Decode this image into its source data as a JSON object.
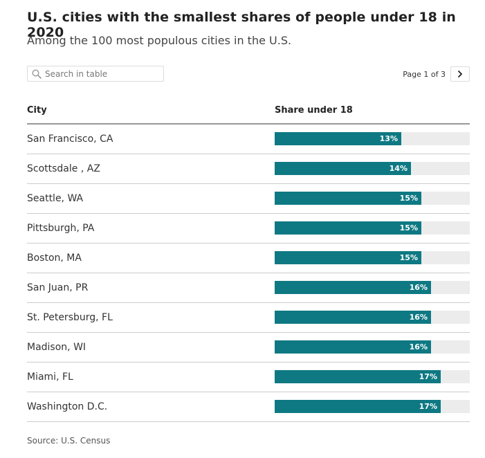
{
  "header": {
    "title": "U.S. cities with the smallest shares of people under 18 in 2020",
    "subtitle": "Among the 100 most populous cities in the U.S."
  },
  "search": {
    "placeholder": "Search in table",
    "icon": "search-icon"
  },
  "pagination": {
    "label": "Page 1 of 3",
    "next_icon": "chevron-right-icon"
  },
  "table": {
    "columns": [
      "City",
      "Share under 18"
    ]
  },
  "colors": {
    "bar": "#0e7983",
    "track": "#ececec"
  },
  "chart_data": {
    "type": "table",
    "columns": [
      "City",
      "Share under 18"
    ],
    "xlim": [
      0,
      20
    ],
    "rows": [
      {
        "city": "San Francisco, CA",
        "value": 13,
        "label": "13%"
      },
      {
        "city": "Scottsdale , AZ",
        "value": 14,
        "label": "14%"
      },
      {
        "city": "Seattle, WA",
        "value": 15,
        "label": "15%"
      },
      {
        "city": "Pittsburgh, PA",
        "value": 15,
        "label": "15%"
      },
      {
        "city": "Boston, MA",
        "value": 15,
        "label": "15%"
      },
      {
        "city": "San Juan, PR",
        "value": 16,
        "label": "16%"
      },
      {
        "city": "St. Petersburg, FL",
        "value": 16,
        "label": "16%"
      },
      {
        "city": "Madison, WI",
        "value": 16,
        "label": "16%"
      },
      {
        "city": "Miami, FL",
        "value": 17,
        "label": "17%"
      },
      {
        "city": "Washington D.C.",
        "value": 17,
        "label": "17%"
      }
    ]
  },
  "footer": {
    "source": "Source: U.S. Census"
  }
}
